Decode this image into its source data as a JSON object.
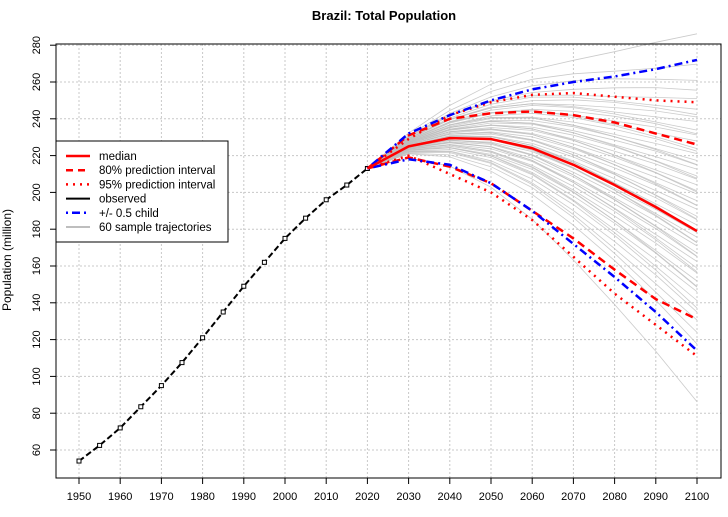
{
  "chart_data": {
    "type": "line",
    "title": "Brazil: Total Population",
    "xlabel": "",
    "ylabel": "Population (million)",
    "xlim": [
      1945,
      2105
    ],
    "ylim": [
      48,
      284
    ],
    "xticks": [
      1950,
      1960,
      1970,
      1980,
      1990,
      2000,
      2010,
      2020,
      2030,
      2040,
      2050,
      2060,
      2070,
      2080,
      2090,
      2100
    ],
    "yticks": [
      60,
      80,
      100,
      120,
      140,
      160,
      180,
      200,
      220,
      240,
      260,
      280
    ],
    "grid": true,
    "legend_position": "left",
    "legend": [
      "median",
      "80% prediction interval",
      "95% prediction interval",
      "observed",
      "+/- 0.5 child",
      "60 sample trajectories"
    ],
    "colors": {
      "median": "#ff0000",
      "pi": "#ff0000",
      "observed": "#000000",
      "half_child": "#0000ff",
      "trajectories": "#bebebe"
    },
    "observed": {
      "x": [
        1950,
        1955,
        1960,
        1965,
        1970,
        1975,
        1980,
        1985,
        1990,
        1995,
        2000,
        2005,
        2010,
        2015,
        2020
      ],
      "y": [
        54,
        62.5,
        72,
        83.5,
        95,
        107.5,
        121,
        135,
        149,
        162,
        175,
        186,
        196,
        204,
        213
      ]
    },
    "projection_x": [
      2020,
      2030,
      2040,
      2050,
      2060,
      2070,
      2080,
      2090,
      2100
    ],
    "median": [
      213,
      225,
      229.5,
      229,
      224,
      215,
      204,
      192,
      179
    ],
    "pi80_upper": [
      213,
      231,
      240,
      243,
      244,
      242,
      238,
      232,
      226
    ],
    "pi80_lower": [
      213,
      219,
      214,
      205,
      190,
      175,
      158,
      142,
      131
    ],
    "pi95_upper": [
      213,
      229,
      242,
      249,
      253,
      254,
      252,
      250,
      249
    ],
    "pi95_lower": [
      213,
      220,
      210,
      200,
      185,
      165,
      145,
      128,
      111
    ],
    "half_child_upper": [
      213,
      232,
      242,
      250,
      256,
      260,
      263,
      267,
      272
    ],
    "half_child_lower": [
      213,
      218,
      215,
      205,
      190,
      172,
      154,
      135,
      114
    ],
    "trajectory_end_values_2100": [
      85,
      118,
      125,
      130,
      134,
      138,
      142,
      145,
      148,
      150,
      152,
      155,
      157,
      160,
      162,
      164,
      166,
      168,
      170,
      172,
      174,
      176,
      177,
      179,
      180,
      182,
      184,
      186,
      188,
      190,
      192,
      194,
      196,
      198,
      200,
      202,
      204,
      206,
      208,
      210,
      212,
      214,
      216,
      218,
      220,
      222,
      225,
      228,
      230,
      232,
      235,
      238,
      240,
      243,
      246,
      250,
      255,
      262,
      270,
      285
    ]
  }
}
